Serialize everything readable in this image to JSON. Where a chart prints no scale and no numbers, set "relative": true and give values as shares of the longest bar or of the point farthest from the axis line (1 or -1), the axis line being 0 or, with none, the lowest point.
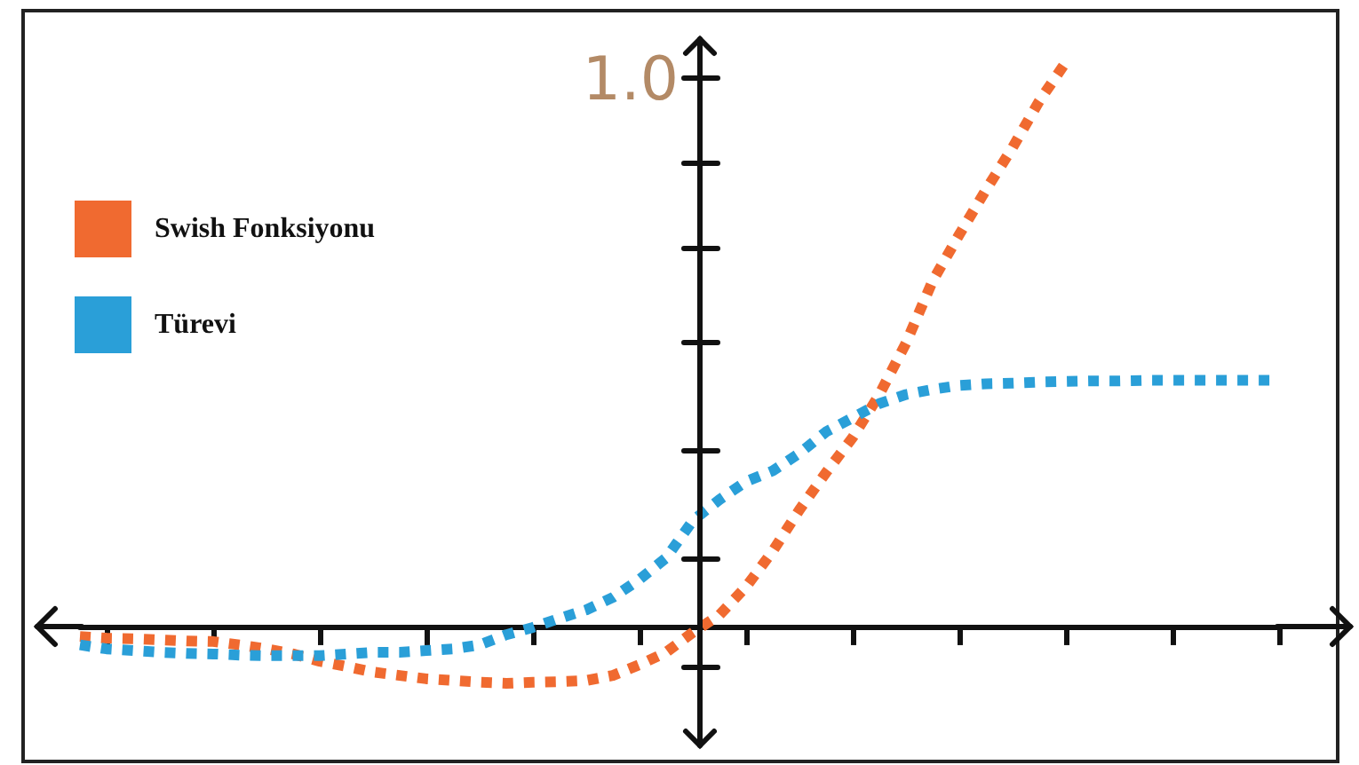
{
  "chart_data": {
    "type": "line",
    "relative": true,
    "line_style": "dotted",
    "marker": "none",
    "legend": "top left",
    "grid": false,
    "annotations": [
      "1.0"
    ],
    "categories": [
      null,
      null,
      null,
      null,
      null,
      null,
      null,
      null,
      null,
      null,
      null,
      null,
      null,
      null,
      null,
      null,
      null,
      null,
      null,
      null,
      null,
      null,
      null,
      null,
      null,
      null,
      null,
      null,
      null,
      null,
      null,
      null,
      null,
      null,
      null,
      null,
      null,
      null,
      null,
      null,
      null,
      null,
      null,
      null,
      null,
      null
    ],
    "series": [
      {
        "name": "Swish Fonksiyonu",
        "color": "#f06a30",
        "values": [
          -0.016,
          -0.019,
          -0.02,
          -0.022,
          -0.024,
          -0.025,
          -0.031,
          -0.038,
          -0.047,
          -0.06,
          -0.069,
          -0.079,
          -0.085,
          -0.091,
          -0.094,
          -0.097,
          -0.099,
          -0.097,
          -0.096,
          -0.094,
          -0.085,
          -0.066,
          -0.044,
          -0.009,
          0.022,
          0.072,
          0.135,
          0.208,
          0.274,
          0.336,
          0.412,
          0.503,
          0.613,
          0.695,
          0.774,
          0.849,
          0.931,
          1,
          null,
          null,
          null,
          null,
          null,
          null,
          null,
          null
        ]
      },
      {
        "name": "Türevi",
        "color": "#2a9fd8",
        "values": [
          -0.031,
          -0.038,
          -0.041,
          -0.044,
          -0.046,
          -0.047,
          -0.049,
          -0.05,
          -0.05,
          -0.05,
          -0.047,
          -0.044,
          -0.044,
          -0.041,
          -0.038,
          -0.031,
          -0.013,
          0,
          0.016,
          0.031,
          0.053,
          0.085,
          0.123,
          0.189,
          0.226,
          0.258,
          0.277,
          0.308,
          0.346,
          0.371,
          0.396,
          0.412,
          0.421,
          0.428,
          0.431,
          0.432,
          0.434,
          0.435,
          0.436,
          0.436,
          0.437,
          0.437,
          0.437,
          0.437,
          0.437,
          0.437
        ]
      }
    ]
  }
}
